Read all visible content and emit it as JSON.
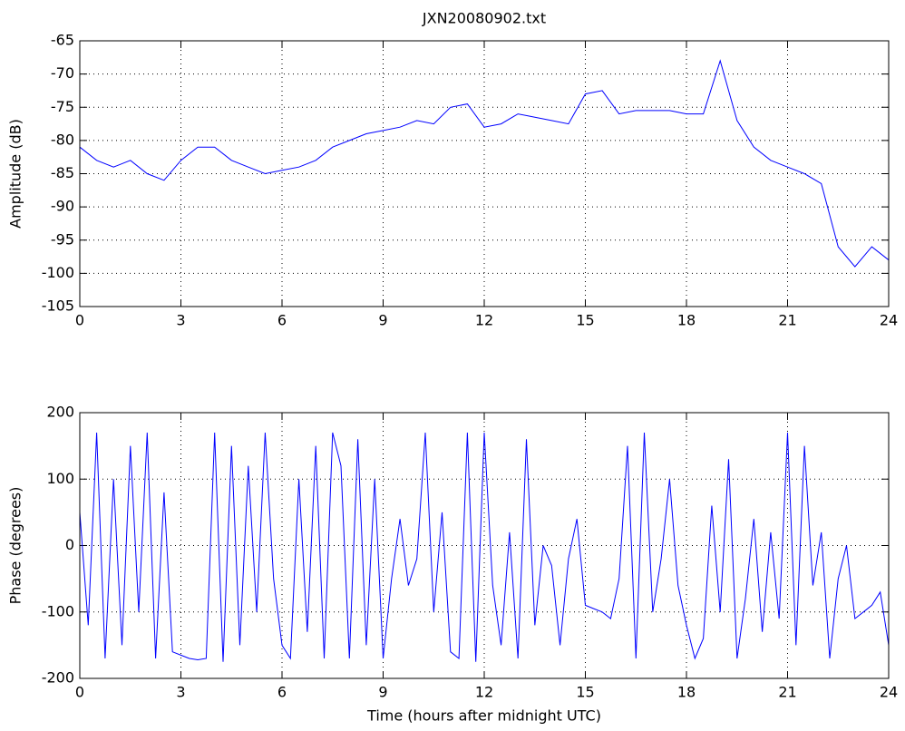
{
  "chart_data": [
    {
      "type": "line",
      "title": "JXN20080902.txt",
      "ylabel": "Amplitude (dB)",
      "x": [
        0,
        0.5,
        1,
        1.5,
        2,
        2.5,
        3,
        3.5,
        4,
        4.5,
        5,
        5.5,
        6,
        6.5,
        7,
        7.5,
        8,
        8.5,
        9,
        9.5,
        10,
        10.5,
        11,
        11.5,
        12,
        12.5,
        13,
        13.5,
        14,
        14.5,
        15,
        15.5,
        16,
        16.5,
        17,
        17.5,
        18,
        18.5,
        19,
        19.5,
        20,
        20.5,
        21,
        21.5,
        22,
        22.5,
        23,
        23.5,
        24
      ],
      "series": [
        {
          "color": "#0000ff",
          "values": [
            -81,
            -83,
            -84,
            -83,
            -85,
            -86,
            -83,
            -81,
            -81,
            -83,
            -84,
            -85,
            -84.5,
            -84,
            -83,
            -81,
            -80,
            -79,
            -78.5,
            -78,
            -77,
            -77.5,
            -75,
            -74.5,
            -78,
            -77.5,
            -76,
            -76.5,
            -77,
            -77.5,
            -73,
            -72.5,
            -76,
            -75.5,
            -75.5,
            -75.5,
            -76,
            -76,
            -68,
            -77,
            -81,
            -83,
            -84,
            -85,
            -86.5,
            -96,
            -99,
            -96,
            -98
          ]
        }
      ],
      "xlim": [
        0,
        24
      ],
      "xticks": [
        0,
        3,
        6,
        9,
        12,
        15,
        18,
        21,
        24
      ],
      "ylim": [
        -105,
        -65
      ],
      "yticks": [
        -105,
        -100,
        -95,
        -90,
        -85,
        -80,
        -75,
        -70,
        -65
      ],
      "grid": true
    },
    {
      "type": "line",
      "ylabel": "Phase (degrees)",
      "xlabel": "Time (hours after midnight UTC)",
      "x": [
        0,
        0.25,
        0.5,
        0.75,
        1,
        1.25,
        1.5,
        1.75,
        2,
        2.25,
        2.5,
        2.75,
        3,
        3.25,
        3.5,
        3.75,
        4,
        4.25,
        4.5,
        4.75,
        5,
        5.25,
        5.5,
        5.75,
        6,
        6.25,
        6.5,
        6.75,
        7,
        7.25,
        7.5,
        7.75,
        8,
        8.25,
        8.5,
        8.75,
        9,
        9.25,
        9.5,
        9.75,
        10,
        10.25,
        10.5,
        10.75,
        11,
        11.25,
        11.5,
        11.75,
        12,
        12.25,
        12.5,
        12.75,
        13,
        13.25,
        13.5,
        13.75,
        14,
        14.25,
        14.5,
        14.75,
        15,
        15.25,
        15.5,
        15.75,
        16,
        16.25,
        16.5,
        16.75,
        17,
        17.25,
        17.5,
        17.75,
        18,
        18.25,
        18.5,
        18.75,
        19,
        19.25,
        19.5,
        19.75,
        20,
        20.25,
        20.5,
        20.75,
        21,
        21.25,
        21.5,
        21.75,
        22,
        22.25,
        22.5,
        22.75,
        23,
        23.25,
        23.5,
        23.75,
        24
      ],
      "series": [
        {
          "color": "#0000ff",
          "values": [
            50,
            -120,
            170,
            -170,
            100,
            -150,
            150,
            -100,
            170,
            -170,
            80,
            -160,
            -165,
            -170,
            -172,
            -170,
            170,
            -175,
            150,
            -150,
            120,
            -100,
            170,
            -50,
            -150,
            -170,
            100,
            -130,
            150,
            -170,
            170,
            120,
            -170,
            160,
            -150,
            100,
            -170,
            -50,
            40,
            -60,
            -20,
            170,
            -100,
            50,
            -160,
            -170,
            170,
            -175,
            170,
            -60,
            -150,
            20,
            -170,
            160,
            -120,
            0,
            -30,
            -150,
            -20,
            40,
            -90,
            -95,
            -100,
            -110,
            -50,
            150,
            -170,
            170,
            -100,
            -20,
            100,
            -60,
            -120,
            -170,
            -140,
            60,
            -100,
            130,
            -170,
            -80,
            40,
            -130,
            20,
            -110,
            170,
            -150,
            150,
            -60,
            20,
            -170,
            -50,
            0,
            -110,
            -100,
            -90,
            -70,
            -150
          ]
        }
      ],
      "xlim": [
        0,
        24
      ],
      "xticks": [
        0,
        3,
        6,
        9,
        12,
        15,
        18,
        21,
        24
      ],
      "ylim": [
        -200,
        200
      ],
      "yticks": [
        -200,
        -100,
        0,
        100,
        200
      ],
      "grid": true
    }
  ]
}
